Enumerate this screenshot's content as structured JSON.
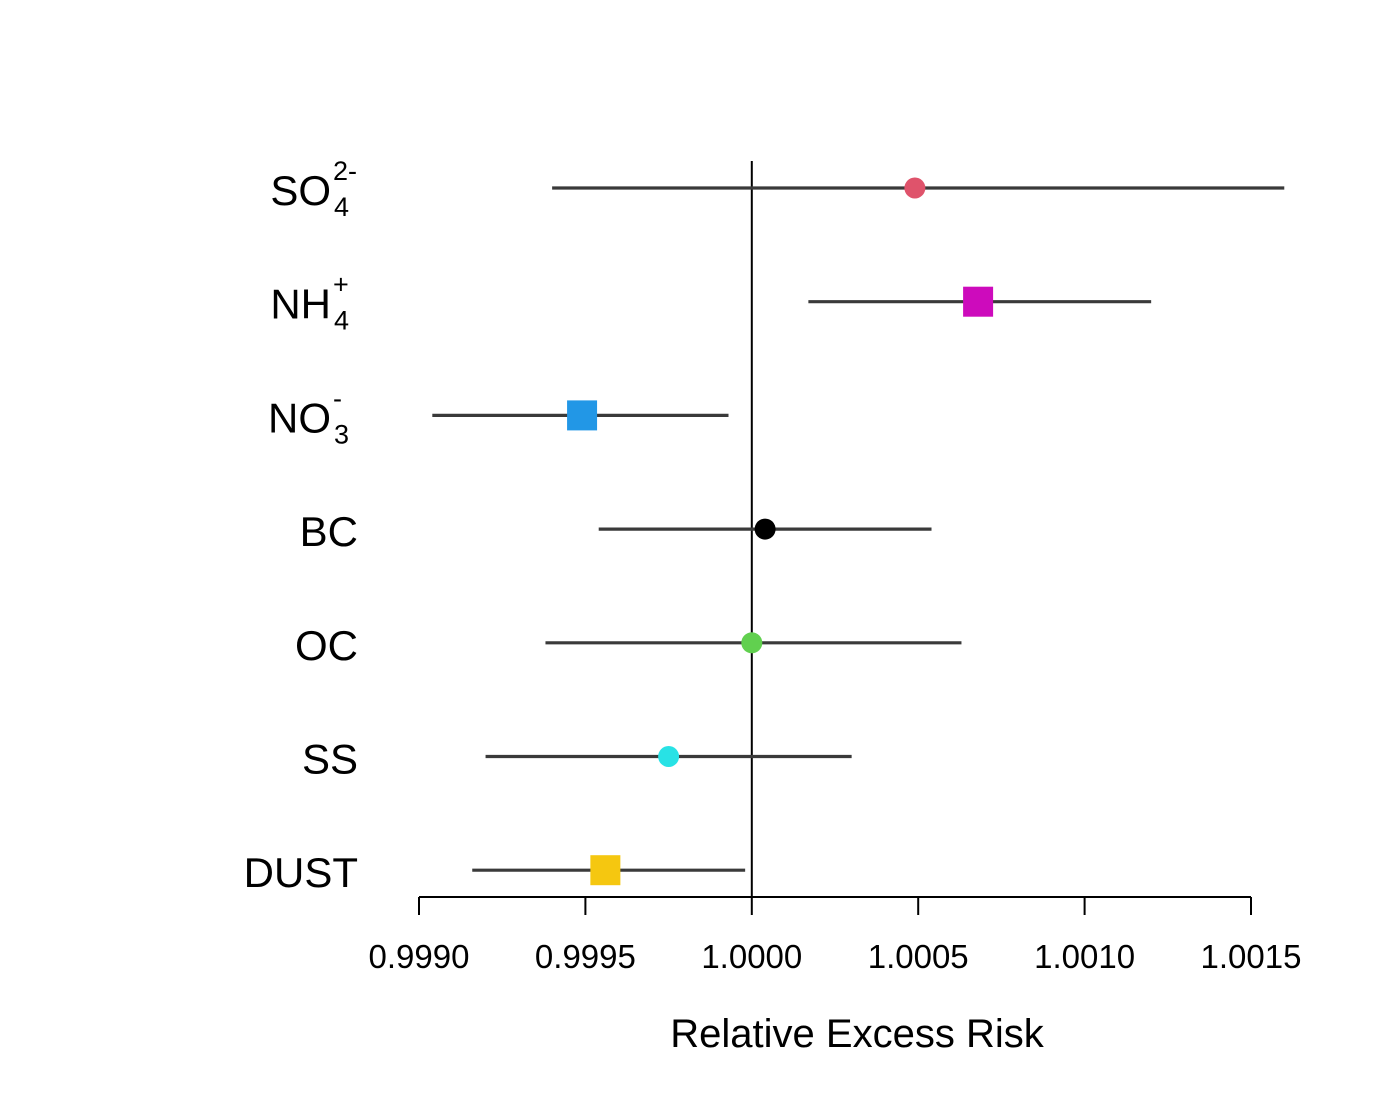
{
  "chart_data": {
    "type": "forest",
    "xlabel": "Relative Excess Risk",
    "xlim": [
      0.999,
      1.0015
    ],
    "xticks": [
      0.999,
      0.9995,
      1.0,
      1.0005,
      1.001,
      1.0015
    ],
    "xtick_labels": [
      "0.9990",
      "0.9995",
      "1.0000",
      "1.0005",
      "1.0010",
      "1.0015"
    ],
    "reference_line": 1.0,
    "categories": [
      {
        "label": "SO",
        "sub": "4",
        "sup": "2-",
        "estimate": 1.00049,
        "lower": 0.9994,
        "upper": 1.0016,
        "marker": "circle",
        "color": "#DF536B"
      },
      {
        "label": "NH",
        "sub": "4",
        "sup": "+",
        "estimate": 1.00068,
        "lower": 1.00017,
        "upper": 1.0012,
        "marker": "square",
        "color": "#CD0BBC"
      },
      {
        "label": "NO",
        "sub": "3",
        "sup": "-",
        "estimate": 0.99949,
        "lower": 0.99904,
        "upper": 0.99993,
        "marker": "square",
        "color": "#2297E6"
      },
      {
        "label": "BC",
        "sub": "",
        "sup": "",
        "estimate": 1.00004,
        "lower": 0.99954,
        "upper": 1.00054,
        "marker": "circle",
        "color": "#000000"
      },
      {
        "label": "OC",
        "sub": "",
        "sup": "",
        "estimate": 1.0,
        "lower": 0.99938,
        "upper": 1.00063,
        "marker": "circle",
        "color": "#61D04F"
      },
      {
        "label": "SS",
        "sub": "",
        "sup": "",
        "estimate": 0.99975,
        "lower": 0.9992,
        "upper": 1.0003,
        "marker": "circle",
        "color": "#28E2E5"
      },
      {
        "label": "DUST",
        "sub": "",
        "sup": "",
        "estimate": 0.99956,
        "lower": 0.99916,
        "upper": 0.99998,
        "marker": "square",
        "color": "#F5C710"
      }
    ]
  }
}
